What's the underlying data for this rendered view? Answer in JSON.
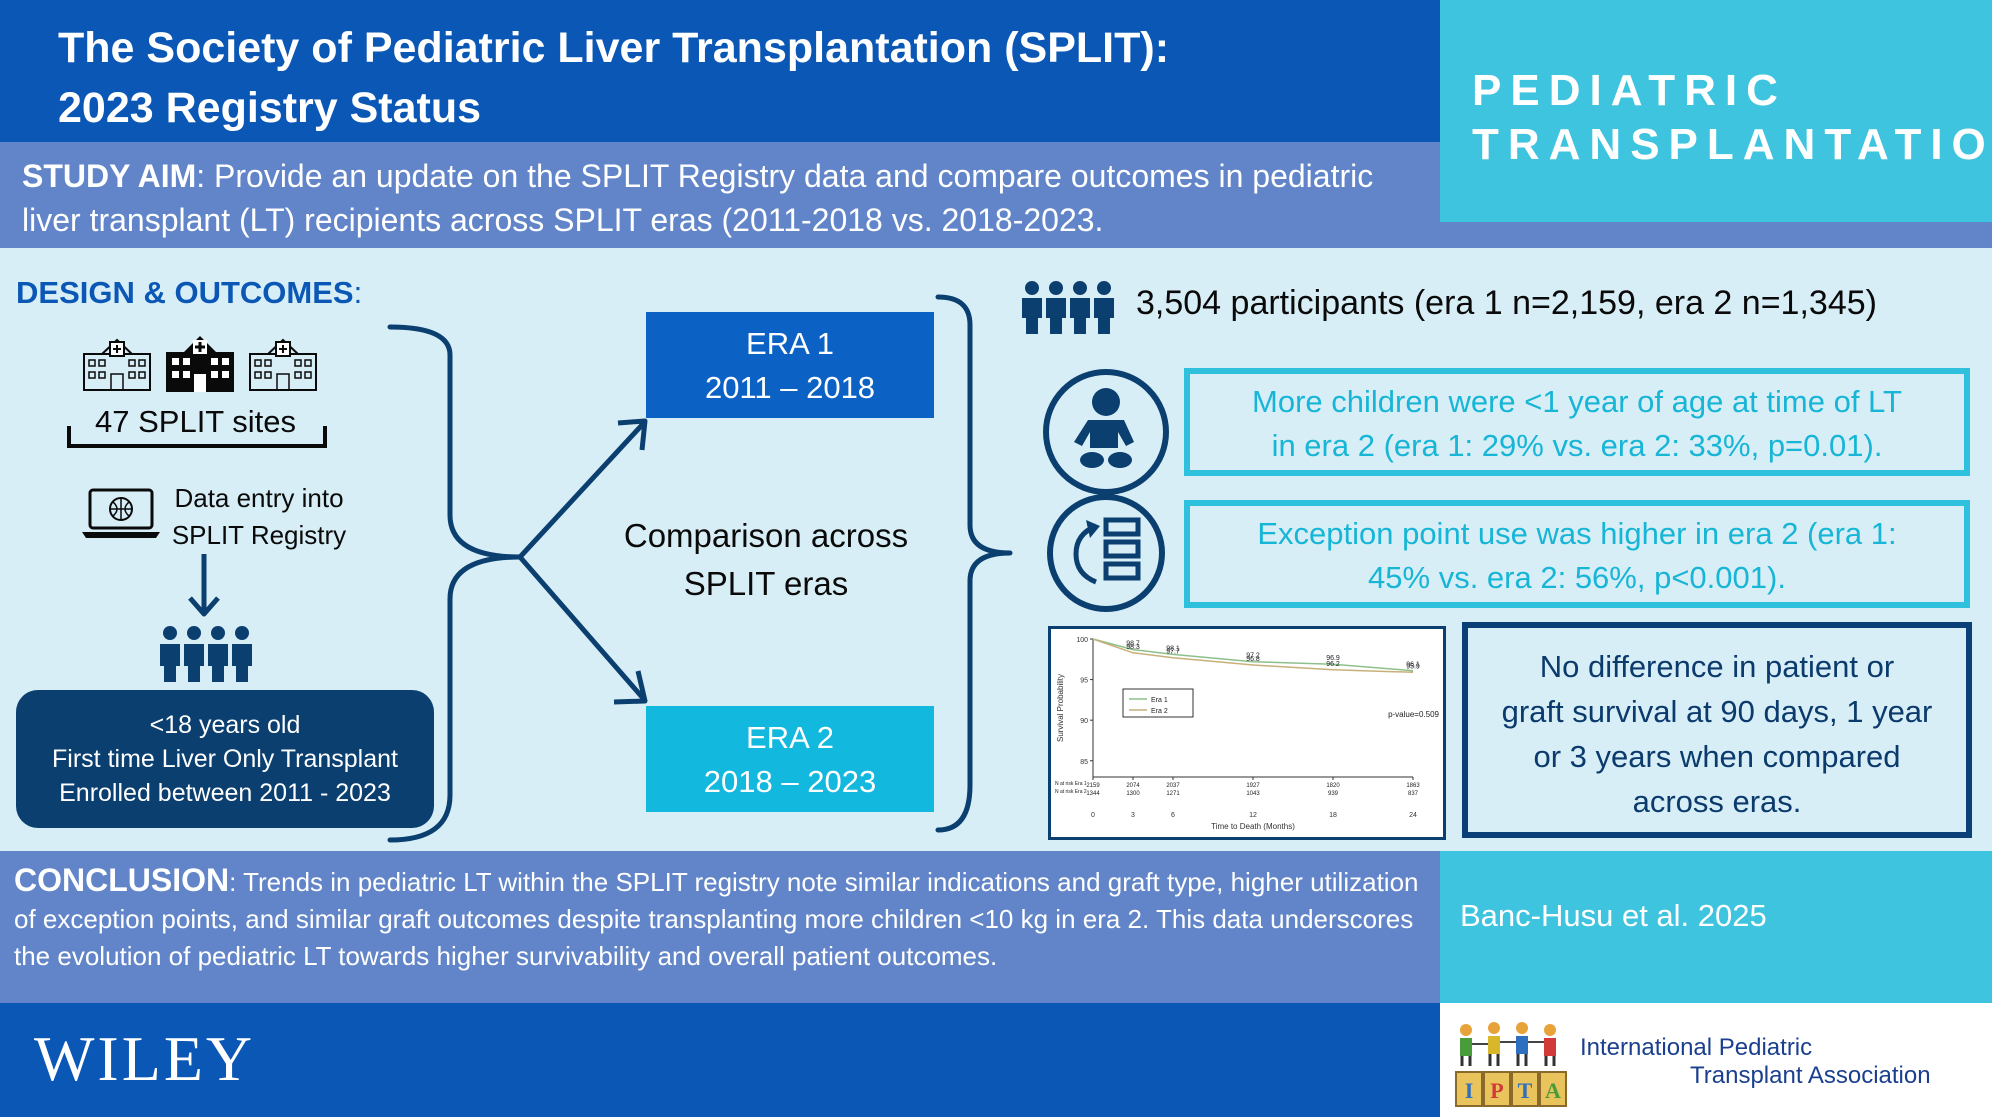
{
  "header": {
    "title_line1": "The Society of Pediatric Liver Transplantation (SPLIT):",
    "title_line2": "2023 Registry Status"
  },
  "journal": {
    "line1": "PEDIATRIC",
    "line2": "TRANSPLANTATION"
  },
  "aim": {
    "label": "STUDY AIM",
    "text": ": Provide an update on the SPLIT Registry data and compare outcomes in pediatric liver transplant (LT) recipients across SPLIT eras (2011-2018 vs. 2018-2023."
  },
  "design": {
    "label": "DESIGN & OUTCOMES",
    "colon": ":",
    "sites": "47 SPLIT sites",
    "data_entry_line1": "Data entry into",
    "data_entry_line2": "SPLIT Registry",
    "criteria_line1": "<18 years old",
    "criteria_line2": "First time Liver Only Transplant",
    "criteria_line3": "Enrolled between 2011 - 2023"
  },
  "comparison": {
    "line1": "Comparison across",
    "line2": "SPLIT eras"
  },
  "eras": [
    {
      "name": "ERA 1",
      "range": "2011 – 2018"
    },
    {
      "name": "ERA 2",
      "range": "2018 – 2023"
    }
  ],
  "participants": "3,504 participants (era 1 n=2,159, era 2 n=1,345)",
  "findings": [
    {
      "line1": "More children were <1 year of age at time of LT",
      "line2": "in era 2 (era 1: 29% vs. era 2: 33%, p=0.01)."
    },
    {
      "line1": "Exception point use was higher in era 2 (era 1:",
      "line2": "45% vs. era 2: 56%, p<0.001)."
    }
  ],
  "no_difference": {
    "line1": "No difference in patient or",
    "line2": "graft survival at 90 days, 1 year",
    "line3": "or 3 years when compared",
    "line4": "across eras."
  },
  "conclusion": {
    "label": "CONCLUSION",
    "text": ": Trends in pediatric LT within the SPLIT registry note similar indications and graft type, higher utilization of exception points, and similar graft outcomes despite transplanting more children <10 kg in era 2. This data underscores the evolution of pediatric LT towards higher survivability and overall patient outcomes."
  },
  "citation": "Banc-Husu et al. 2025",
  "publisher": "WILEY",
  "ipta": {
    "line1": "International Pediatric",
    "line2": "Transplant Association",
    "blocks": [
      "I",
      "P",
      "T",
      "A"
    ]
  },
  "chart_data": {
    "type": "line",
    "xlabel": "Time to Death (Months)",
    "ylabel": "Survival Probability",
    "x": [
      0,
      3,
      6,
      12,
      18,
      24
    ],
    "xticks": [
      "0",
      "3",
      "6",
      "12",
      "18",
      "24"
    ],
    "yticks": [
      "100",
      "95",
      "90",
      "85"
    ],
    "ylim": [
      83,
      100
    ],
    "pvalue": "p-value=0.509",
    "series": [
      {
        "name": "Era 1",
        "color": "#8dc08a",
        "points": [
          [
            0,
            100
          ],
          [
            3,
            98.7
          ],
          [
            6,
            98.1
          ],
          [
            12,
            97.2
          ],
          [
            18,
            96.9
          ],
          [
            24,
            96.1
          ]
        ]
      },
      {
        "name": "Era 2",
        "color": "#c7b07a",
        "points": [
          [
            0,
            100
          ],
          [
            3,
            98.3
          ],
          [
            6,
            97.7
          ],
          [
            12,
            96.8
          ],
          [
            18,
            96.2
          ],
          [
            24,
            95.9
          ]
        ]
      }
    ],
    "labels": [
      {
        "x": 3,
        "y": 98.7,
        "text": "98.7"
      },
      {
        "x": 6,
        "y": 98.1,
        "text": "98.1"
      },
      {
        "x": 12,
        "y": 97.2,
        "text": "97.2"
      },
      {
        "x": 18,
        "y": 96.9,
        "text": "96.9"
      },
      {
        "x": 24,
        "y": 96.1,
        "text": "96.1"
      },
      {
        "x": 3,
        "y": 98.3,
        "text": "98.3"
      },
      {
        "x": 6,
        "y": 97.7,
        "text": "97.7"
      },
      {
        "x": 12,
        "y": 96.8,
        "text": "96.8"
      },
      {
        "x": 18,
        "y": 96.2,
        "text": "96.2"
      },
      {
        "x": 24,
        "y": 95.9,
        "text": "95.9"
      }
    ],
    "risk_table": {
      "row1_label": "N at risk Era 1",
      "row2_label": "N at risk Era 2",
      "row1": [
        "2159",
        "2074",
        "2037",
        "1927",
        "1820",
        "1863"
      ],
      "row2": [
        "1344",
        "1300",
        "1271",
        "1043",
        "939",
        "837"
      ]
    },
    "legend": "top-left"
  },
  "colors": {
    "navy": "#0b57b6",
    "aim_blue": "#6185c8",
    "cyan": "#3fc4df",
    "bg": "#d8eef7",
    "dark_navy": "#0a3f6f"
  }
}
